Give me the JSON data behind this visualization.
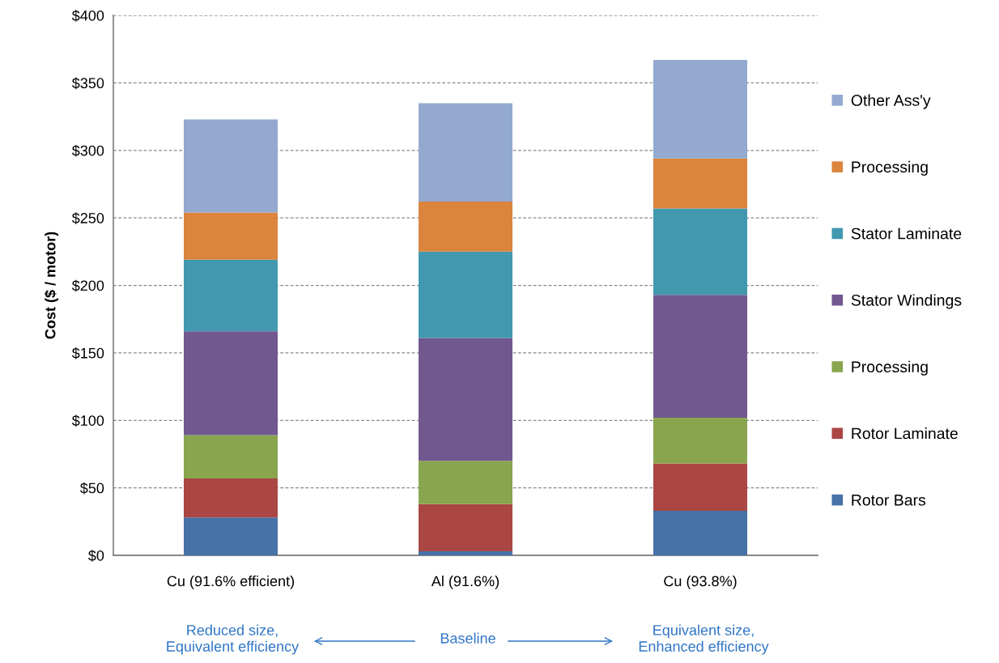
{
  "chart_data": {
    "type": "bar",
    "stacked": true,
    "ylabel": "Cost ($ / motor)",
    "categories": [
      "Cu (91.6% efficient)",
      "Al (91.6%)",
      "Cu (93.8%)"
    ],
    "series": [
      {
        "name": "Rotor Bars",
        "color": "#4572a7",
        "values": [
          28,
          3,
          33
        ]
      },
      {
        "name": "Rotor Laminate",
        "color": "#aa4643",
        "values": [
          29,
          35,
          35
        ]
      },
      {
        "name": "Processing",
        "color": "#89a54e",
        "values": [
          32,
          32,
          34
        ]
      },
      {
        "name": "Stator Windings",
        "color": "#71588f",
        "values": [
          77,
          91,
          91
        ]
      },
      {
        "name": "Stator Laminate",
        "color": "#4198af",
        "values": [
          53,
          64,
          64
        ]
      },
      {
        "name": "Processing",
        "color": "#db843d",
        "values": [
          35,
          37,
          37
        ]
      },
      {
        "name": "Other Ass'y",
        "color": "#93a9cf",
        "values": [
          69,
          73,
          73
        ]
      }
    ],
    "ylim": [
      0,
      400
    ],
    "yticks": [
      {
        "value": 0,
        "label": "$0"
      },
      {
        "value": 50,
        "label": "$50"
      },
      {
        "value": 100,
        "label": "$100"
      },
      {
        "value": 150,
        "label": "$150"
      },
      {
        "value": 200,
        "label": "$200"
      },
      {
        "value": 250,
        "label": "$250"
      },
      {
        "value": 300,
        "label": "$300"
      },
      {
        "value": 350,
        "label": "$350"
      },
      {
        "value": 400,
        "label": "$400"
      }
    ],
    "grid": "y",
    "legend": "right",
    "annotations": [
      "Reduced size,\nEquivalent efficiency",
      "Baseline",
      "Equivalent size,\nEnhanced efficiency"
    ]
  }
}
